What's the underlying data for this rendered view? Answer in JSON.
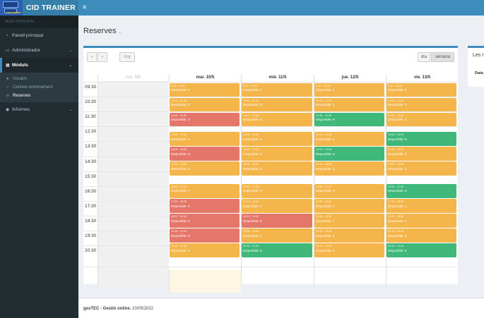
{
  "app": {
    "brand": "CID TRAINER",
    "brand_sub": "Cid Trainer"
  },
  "sidebar": {
    "header": "MENÚ PRINCIPAL",
    "items": [
      {
        "label": "Panell principal",
        "icon": "dashboard-icon"
      },
      {
        "label": "Administrador",
        "icon": "laptop-icon"
      },
      {
        "label": "Mòduls",
        "icon": "grid-icon"
      },
      {
        "label": "Informes",
        "icon": "eye-icon"
      }
    ],
    "sub_items": [
      {
        "label": "Usuaris",
        "icon": "user-icon"
      },
      {
        "label": "Centres entrenament",
        "icon": "circle-icon"
      },
      {
        "label": "Reserves",
        "icon": "circle-icon"
      }
    ]
  },
  "page": {
    "title": "Reserves",
    "subtitle": "..."
  },
  "toolbar": {
    "prev": "‹",
    "next": "›",
    "today": "hoy",
    "day": "día",
    "week": "semana",
    "title": "-"
  },
  "calendar": {
    "days": [
      {
        "label": "lun. 9/5",
        "dim": true
      },
      {
        "label": "mar. 10/5",
        "dim": false
      },
      {
        "label": "mié. 11/5",
        "dim": false
      },
      {
        "label": "jue. 12/5",
        "dim": false
      },
      {
        "label": "vie. 13/5",
        "dim": false
      }
    ],
    "times": [
      "09:30",
      "10:30",
      "11:30",
      "12:30",
      "13:30",
      "14:30",
      "15:30",
      "16:30",
      "17:30",
      "18:30",
      "19:30",
      "20:30"
    ],
    "colors": {
      "orange": "#f4b54a",
      "red": "#e4766a",
      "green": "#3fb879",
      "today": "#fdf6e3"
    },
    "events": [
      {
        "day": 1,
        "slot": 0,
        "time": "9:30 - 10:30",
        "label": "Disponible: 4",
        "color": "orange"
      },
      {
        "day": 1,
        "slot": 1,
        "time": "10:30 - 11:30",
        "label": "Disponible: 4",
        "color": "orange"
      },
      {
        "day": 1,
        "slot": 2,
        "time": "11:30 - 12:30",
        "label": "Disponible: 0",
        "color": "red"
      },
      {
        "day": 1,
        "slot": 4,
        "time": "13:00 - 14:00",
        "label": "Disponible: 2",
        "color": "orange"
      },
      {
        "day": 1,
        "slot": 5,
        "time": "14:00 - 15:00",
        "label": "Disponible: 0",
        "color": "red"
      },
      {
        "day": 1,
        "slot": 6,
        "time": "15:00 - 16:00",
        "label": "Disponible: 2",
        "color": "orange"
      },
      {
        "day": 1,
        "slot": 8,
        "time": "16:30 - 17:30",
        "label": "Disponible: 4",
        "color": "orange"
      },
      {
        "day": 1,
        "slot": 9,
        "time": "17:30 - 18:30",
        "label": "Disponible: 0",
        "color": "red"
      },
      {
        "day": 1,
        "slot": 10,
        "time": "18:30 - 19:30",
        "label": "Disponible: 0",
        "color": "red"
      },
      {
        "day": 1,
        "slot": 11,
        "time": "19:30 - 20:30",
        "label": "Disponible: 0",
        "color": "red"
      },
      {
        "day": 1,
        "slot": 12,
        "time": "20:30 - 21:30",
        "label": "Disponible: 3",
        "color": "orange"
      },
      {
        "day": 2,
        "slot": 0,
        "time": "9:30 - 10:30",
        "label": "Disponible: 3",
        "color": "orange"
      },
      {
        "day": 2,
        "slot": 1,
        "time": "10:30 - 11:30",
        "label": "Disponible: 3",
        "color": "orange"
      },
      {
        "day": 2,
        "slot": 2,
        "time": "11:30 - 12:30",
        "label": "Disponible: 3",
        "color": "orange"
      },
      {
        "day": 2,
        "slot": 4,
        "time": "13:00 - 14:00",
        "label": "Disponible: 5",
        "color": "orange"
      },
      {
        "day": 2,
        "slot": 5,
        "time": "14:00 - 15:00",
        "label": "Disponible: 5",
        "color": "orange"
      },
      {
        "day": 2,
        "slot": 6,
        "time": "15:00 - 16:00",
        "label": "Disponible: 2",
        "color": "orange"
      },
      {
        "day": 2,
        "slot": 8,
        "time": "16:30 - 17:30",
        "label": "Disponible: 3",
        "color": "orange"
      },
      {
        "day": 2,
        "slot": 9,
        "time": "17:30 - 18:30",
        "label": "Disponible: 2",
        "color": "orange"
      },
      {
        "day": 2,
        "slot": 10,
        "time": "18:30 - 19:30",
        "label": "Disponible: 0",
        "color": "red"
      },
      {
        "day": 2,
        "slot": 11,
        "time": "19:30 - 20:30",
        "label": "Disponible: 1",
        "color": "orange"
      },
      {
        "day": 2,
        "slot": 12,
        "time": "20:30 - 21:30",
        "label": "Disponible: 6",
        "color": "green"
      },
      {
        "day": 3,
        "slot": 0,
        "time": "9:30 - 10:30",
        "label": "Disponible: 1",
        "color": "orange"
      },
      {
        "day": 3,
        "slot": 1,
        "time": "10:30 - 11:30",
        "label": "Disponible: 1",
        "color": "orange"
      },
      {
        "day": 3,
        "slot": 2,
        "time": "11:30 - 12:30",
        "label": "Disponible: 6",
        "color": "green"
      },
      {
        "day": 3,
        "slot": 4,
        "time": "13:00 - 14:00",
        "label": "Disponible: 4",
        "color": "orange"
      },
      {
        "day": 3,
        "slot": 5,
        "time": "14:00 - 15:00",
        "label": "Disponible: 6",
        "color": "green"
      },
      {
        "day": 3,
        "slot": 6,
        "time": "15:00 - 16:00",
        "label": "Disponible: 3",
        "color": "orange"
      },
      {
        "day": 3,
        "slot": 8,
        "time": "16:30 - 17:30",
        "label": "Disponible: 3",
        "color": "orange"
      },
      {
        "day": 3,
        "slot": 9,
        "time": "17:30 - 18:30",
        "label": "Disponible: 4",
        "color": "orange"
      },
      {
        "day": 3,
        "slot": 10,
        "time": "18:30 - 19:30",
        "label": "Disponible: 1",
        "color": "orange"
      },
      {
        "day": 3,
        "slot": 11,
        "time": "19:30 - 20:30",
        "label": "Disponible: 1",
        "color": "orange"
      },
      {
        "day": 3,
        "slot": 12,
        "time": "20:30 - 21:30",
        "label": "Disponible: 2",
        "color": "orange"
      },
      {
        "day": 4,
        "slot": 0,
        "time": "9:30 - 10:30",
        "label": "Disponible: 4",
        "color": "orange"
      },
      {
        "day": 4,
        "slot": 1,
        "time": "10:30 - 11:30",
        "label": "Disponible: 2",
        "color": "orange"
      },
      {
        "day": 4,
        "slot": 2,
        "time": "11:30 - 12:30",
        "label": "Disponible: 4",
        "color": "orange"
      },
      {
        "day": 4,
        "slot": 4,
        "time": "13:00 - 14:00",
        "label": "Disponible: 6",
        "color": "green"
      },
      {
        "day": 4,
        "slot": 5,
        "time": "14:00 - 15:00",
        "label": "Disponible: 3",
        "color": "orange"
      },
      {
        "day": 4,
        "slot": 6,
        "time": "15:00 - 16:00",
        "label": "Disponible: 3",
        "color": "orange"
      },
      {
        "day": 4,
        "slot": 8,
        "time": "16:30 - 17:30",
        "label": "Disponible: 6",
        "color": "green"
      },
      {
        "day": 4,
        "slot": 9,
        "time": "17:30 - 18:30",
        "label": "Disponible: 1",
        "color": "orange"
      },
      {
        "day": 4,
        "slot": 10,
        "time": "18:30 - 19:30",
        "label": "Disponible: 3",
        "color": "orange"
      },
      {
        "day": 4,
        "slot": 11,
        "time": "19:30 - 20:30",
        "label": "Disponible: 5",
        "color": "orange"
      },
      {
        "day": 4,
        "slot": 12,
        "time": "20:30 - 21:30",
        "label": "Disponible: 6",
        "color": "green"
      }
    ]
  },
  "right_panel": {
    "title": "Les r",
    "col": "Data"
  },
  "footer": {
    "brand": "gesTEC - Gestió online.",
    "date": "10/05/2022"
  }
}
